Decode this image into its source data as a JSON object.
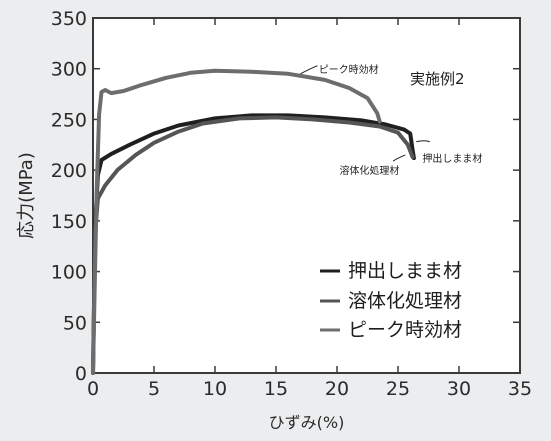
{
  "chart_data": {
    "type": "line",
    "xlabel": "ひずみ(%)",
    "ylabel": "応力(MPa)",
    "xlim": [
      0,
      35
    ],
    "ylim": [
      0,
      350
    ],
    "xticks": [
      0,
      5,
      10,
      15,
      20,
      25,
      30,
      35
    ],
    "yticks": [
      0,
      50,
      100,
      150,
      200,
      250,
      300,
      350
    ],
    "grid": false,
    "legend_position": "lower-right",
    "annotation_title": "実施例2",
    "series": [
      {
        "name": "押出しまま材",
        "color": "#1f1f1f",
        "label": "押出しまま材",
        "points": [
          [
            0,
            0
          ],
          [
            0.1,
            80
          ],
          [
            0.2,
            150
          ],
          [
            0.4,
            195
          ],
          [
            0.7,
            210
          ],
          [
            1.5,
            216
          ],
          [
            3,
            225
          ],
          [
            5,
            236
          ],
          [
            7,
            244
          ],
          [
            10,
            251
          ],
          [
            13,
            254
          ],
          [
            16,
            254
          ],
          [
            19,
            252
          ],
          [
            22,
            249
          ],
          [
            24,
            245
          ],
          [
            25.5,
            240
          ],
          [
            26,
            236
          ],
          [
            26.2,
            220
          ],
          [
            26.3,
            212
          ]
        ]
      },
      {
        "name": "溶体化処理材",
        "color": "#555555",
        "label": "溶体化処理材",
        "points": [
          [
            0,
            0
          ],
          [
            0.1,
            80
          ],
          [
            0.2,
            140
          ],
          [
            0.4,
            172
          ],
          [
            1,
            185
          ],
          [
            2,
            200
          ],
          [
            3.5,
            215
          ],
          [
            5,
            227
          ],
          [
            7,
            238
          ],
          [
            9,
            246
          ],
          [
            12,
            251
          ],
          [
            15,
            252
          ],
          [
            18,
            250
          ],
          [
            21,
            247
          ],
          [
            23.5,
            243
          ],
          [
            25,
            237
          ],
          [
            25.8,
            225
          ],
          [
            26.2,
            213
          ]
        ]
      },
      {
        "name": "ピーク時効材",
        "color": "#6d6d6d",
        "label": "ピーク時効材",
        "points": [
          [
            0,
            0
          ],
          [
            0.15,
            90
          ],
          [
            0.3,
            180
          ],
          [
            0.5,
            255
          ],
          [
            0.7,
            277
          ],
          [
            1,
            279
          ],
          [
            1.5,
            276
          ],
          [
            2.5,
            278
          ],
          [
            4,
            284
          ],
          [
            6,
            291
          ],
          [
            8,
            296
          ],
          [
            10,
            298
          ],
          [
            13,
            297
          ],
          [
            16,
            295
          ],
          [
            19,
            289
          ],
          [
            21,
            281
          ],
          [
            22.5,
            271
          ],
          [
            23.3,
            256
          ],
          [
            23.5,
            248
          ]
        ]
      }
    ]
  }
}
